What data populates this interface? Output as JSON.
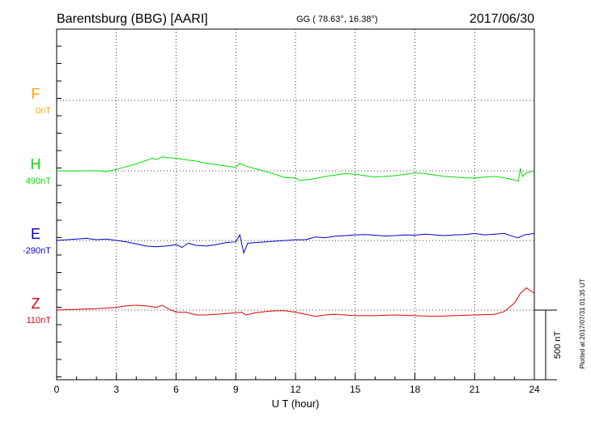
{
  "header": {
    "station": "Barentsburg (BBG)  [AARI]",
    "coords": "GG ( 78.63°,  16.38°)",
    "date": "2017/06/30"
  },
  "footer": {
    "plotted": "Plotted at 2017/07/31 01:35 UT"
  },
  "chart_data": {
    "type": "line",
    "title": "",
    "xlabel": "U T (hour)",
    "ylabel": "",
    "xlim": [
      0,
      24
    ],
    "x_ticks": [
      "0",
      "3",
      "6",
      "9",
      "12",
      "15",
      "18",
      "21",
      "24"
    ],
    "grid": true,
    "scale_bar": {
      "label": "500 nT",
      "value_nT": 500
    },
    "series": [
      {
        "name": "F",
        "baseline": "0nT",
        "color": "#ffa500",
        "x": [],
        "y": []
      },
      {
        "name": "H",
        "baseline": "490nT",
        "color": "#00e000",
        "x": [
          0,
          1,
          2,
          2.5,
          3,
          3.5,
          4,
          4.5,
          4.8,
          5,
          5.3,
          5.6,
          6,
          6.5,
          7,
          7.5,
          8,
          8.5,
          9,
          9.2,
          9.4,
          9.6,
          10,
          10.5,
          11,
          11.5,
          12,
          12.2,
          12.5,
          13,
          13.5,
          14,
          14.5,
          15,
          15.5,
          16,
          16.5,
          17,
          17.5,
          18,
          18.5,
          19,
          19.5,
          20,
          20.5,
          21,
          21.5,
          22,
          22.5,
          23,
          23.2,
          23.3,
          23.4,
          23.6,
          24
        ],
        "y": [
          490,
          488,
          492,
          484,
          500,
          520,
          540,
          565,
          580,
          570,
          590,
          585,
          580,
          570,
          560,
          545,
          535,
          525,
          515,
          545,
          530,
          520,
          505,
          485,
          465,
          440,
          440,
          420,
          425,
          435,
          450,
          460,
          470,
          465,
          455,
          445,
          450,
          455,
          465,
          475,
          470,
          460,
          450,
          445,
          440,
          438,
          445,
          450,
          440,
          425,
          415,
          510,
          450,
          475,
          490
        ]
      },
      {
        "name": "E",
        "baseline": "-290nT",
        "color": "#0000d0",
        "x": [
          0,
          0.5,
          1,
          1.5,
          2,
          2.5,
          3,
          3.5,
          4,
          4.5,
          5,
          5.5,
          6,
          6.3,
          6.6,
          7,
          7.5,
          8,
          8.5,
          9,
          9.2,
          9.4,
          9.6,
          10,
          10.5,
          11,
          11.5,
          12,
          12.5,
          13,
          13.5,
          14,
          14.5,
          15,
          15.5,
          16,
          16.5,
          17,
          17.5,
          18,
          18.5,
          19,
          19.5,
          20,
          20.5,
          21,
          21.5,
          22,
          22.5,
          23,
          23.2,
          23.5,
          24
        ],
        "y": [
          -290,
          -285,
          -280,
          -275,
          -285,
          -280,
          -290,
          -300,
          -315,
          -330,
          -335,
          -330,
          -320,
          -340,
          -310,
          -325,
          -330,
          -320,
          -305,
          -300,
          -250,
          -380,
          -310,
          -305,
          -300,
          -295,
          -290,
          -285,
          -285,
          -265,
          -270,
          -260,
          -255,
          -250,
          -248,
          -252,
          -258,
          -255,
          -250,
          -252,
          -245,
          -250,
          -255,
          -250,
          -248,
          -240,
          -250,
          -245,
          -240,
          -265,
          -270,
          -250,
          -240
        ]
      },
      {
        "name": "Z",
        "baseline": "110nT",
        "color": "#e00000",
        "x": [
          0,
          1,
          2,
          3,
          3.5,
          4,
          4.5,
          5,
          5.3,
          5.6,
          6,
          6.5,
          7,
          7.5,
          8,
          8.5,
          9,
          9.3,
          9.5,
          10,
          10.5,
          11,
          11.5,
          12,
          12.5,
          13,
          13.5,
          14,
          15,
          16,
          17,
          18,
          19,
          20,
          21,
          22,
          22.5,
          23,
          23.3,
          23.6,
          23.8,
          24
        ],
        "y": [
          110,
          115,
          120,
          130,
          140,
          145,
          140,
          130,
          145,
          120,
          95,
          95,
          75,
          75,
          80,
          85,
          90,
          95,
          75,
          90,
          100,
          105,
          105,
          95,
          80,
          65,
          75,
          80,
          70,
          70,
          75,
          70,
          65,
          70,
          75,
          80,
          100,
          160,
          230,
          270,
          250,
          230
        ]
      }
    ]
  }
}
